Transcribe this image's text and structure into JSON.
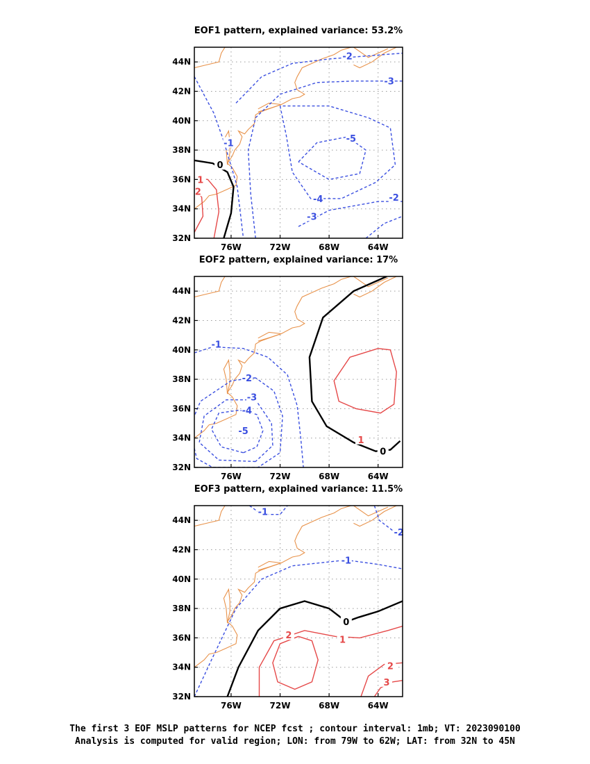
{
  "colors": {
    "coast": "#e8924a",
    "negative": "#3a4fe0",
    "positive": "#e54848",
    "zero": "#000000",
    "grid": "#9a9a9a"
  },
  "chart_data": [
    {
      "type": "contour",
      "title": "EOF1 pattern, explained variance: 53.2%",
      "xlim": [
        -79,
        -62
      ],
      "ylim": [
        32,
        45
      ],
      "xticks": [
        -76,
        -72,
        -68,
        -64
      ],
      "xtick_labels": [
        "76W",
        "72W",
        "68W",
        "64W"
      ],
      "yticks": [
        32,
        34,
        36,
        38,
        40,
        42,
        44
      ],
      "ytick_labels": [
        "32N",
        "34N",
        "36N",
        "38N",
        "40N",
        "42N",
        "44N"
      ],
      "grid": true,
      "contours": [
        {
          "level": -2,
          "label": "-2",
          "label_at": [
            -66.5,
            44.4
          ],
          "points": [
            [
              -75.6,
              41.2
            ],
            [
              -73.5,
              43
            ],
            [
              -71,
              43.9
            ],
            [
              -68,
              44.2
            ],
            [
              -65,
              44.4
            ],
            [
              -62,
              44.6
            ]
          ]
        },
        {
          "level": -3,
          "label": "-3",
          "label_at": [
            -63.1,
            42.7
          ],
          "points": [
            [
              -74.0,
              32.0
            ],
            [
              -74.4,
              35
            ],
            [
              -74.6,
              38
            ],
            [
              -74.0,
              40.2
            ],
            [
              -72,
              41.8
            ],
            [
              -69,
              42.6
            ],
            [
              -66,
              42.7
            ],
            [
              -62,
              42.7
            ]
          ]
        },
        {
          "level": -4,
          "label": "-4",
          "label_at": [
            -68.9,
            34.7
          ],
          "points": [
            [
              -72,
              41
            ],
            [
              -71.5,
              39
            ],
            [
              -71,
              36.5
            ],
            [
              -69.5,
              34.7
            ],
            [
              -67,
              34.7
            ],
            [
              -64.2,
              35.8
            ],
            [
              -62.6,
              37.0
            ],
            [
              -63.0,
              39.5
            ],
            [
              -64.8,
              40.2
            ],
            [
              -68,
              41.0
            ],
            [
              -72,
              41
            ]
          ]
        },
        {
          "level": -5,
          "label": "-5",
          "label_at": [
            -66.2,
            38.8
          ],
          "points": [
            [
              -70.5,
              37.2
            ],
            [
              -69,
              38.5
            ],
            [
              -66.5,
              38.9
            ],
            [
              -65.0,
              38.0
            ],
            [
              -65.5,
              36.4
            ],
            [
              -68,
              36.0
            ],
            [
              -70.5,
              37.2
            ]
          ]
        },
        {
          "level": -3,
          "label": "-3",
          "label_at": [
            -69.4,
            33.5
          ],
          "points": [
            [
              -70.5,
              32.8
            ],
            [
              -68,
              33.9
            ],
            [
              -64,
              34.5
            ],
            [
              -62,
              34.5
            ]
          ]
        },
        {
          "level": -2,
          "label": "-2",
          "label_at": [
            -62.7,
            34.8
          ],
          "points": [
            [
              -65.0,
              32.0
            ],
            [
              -63.5,
              33.0
            ],
            [
              -62,
              33.5
            ]
          ]
        },
        {
          "level": -1,
          "label": "-1",
          "label_at": [
            -76.2,
            38.5
          ],
          "points": [
            [
              -79,
              43
            ],
            [
              -77.4,
              40.5
            ],
            [
              -76.6,
              38.6
            ],
            [
              -75.5,
              35.5
            ],
            [
              -75.0,
              32
            ]
          ]
        },
        {
          "level": 0,
          "label": "0",
          "label_at": [
            -76.9,
            37.0
          ],
          "points": [
            [
              -79,
              37.3
            ],
            [
              -77.5,
              37.1
            ],
            [
              -76.3,
              36.5
            ],
            [
              -75.8,
              35.5
            ],
            [
              -76.0,
              33.7
            ],
            [
              -76.6,
              32
            ]
          ]
        },
        {
          "level": 1,
          "label": "1",
          "label_at": [
            -78.5,
            36.0
          ],
          "points": [
            [
              -79,
              36.1
            ],
            [
              -77.9,
              36.0
            ],
            [
              -77.2,
              35.3
            ],
            [
              -77.0,
              33.8
            ],
            [
              -77.4,
              32
            ]
          ]
        },
        {
          "level": 2,
          "label": "2",
          "label_at": [
            -78.7,
            35.2
          ],
          "points": [
            [
              -79,
              35.3
            ],
            [
              -78.4,
              34.8
            ],
            [
              -78.3,
              33.5
            ],
            [
              -79,
              32.4
            ]
          ]
        }
      ]
    },
    {
      "type": "contour",
      "title": "EOF2 pattern, explained variance: 17%",
      "xlim": [
        -79,
        -62
      ],
      "ylim": [
        32,
        45
      ],
      "xticks": [
        -76,
        -72,
        -68,
        -64
      ],
      "xtick_labels": [
        "76W",
        "72W",
        "68W",
        "64W"
      ],
      "yticks": [
        32,
        34,
        36,
        38,
        40,
        42,
        44
      ],
      "ytick_labels": [
        "32N",
        "34N",
        "36N",
        "38N",
        "40N",
        "42N",
        "44N"
      ],
      "grid": true,
      "contours": [
        {
          "level": 0,
          "label": "0",
          "label_at": [
            -63.6,
            33.1
          ],
          "points": [
            [
              -63.3,
              45
            ],
            [
              -66,
              44
            ],
            [
              -68.5,
              42.2
            ],
            [
              -69.6,
              39.5
            ],
            [
              -69.4,
              36.5
            ],
            [
              -68.2,
              34.8
            ],
            [
              -66,
              33.7
            ],
            [
              -64.2,
              33.1
            ],
            [
              -63.0,
              33.2
            ],
            [
              -62.2,
              33.8
            ]
          ]
        },
        {
          "level": 1,
          "label": "1",
          "label_at": [
            -65.4,
            33.9
          ],
          "points": [
            [
              -64,
              40.1
            ],
            [
              -66.3,
              39.5
            ],
            [
              -67.6,
              37.9
            ],
            [
              -67.2,
              36.5
            ],
            [
              -65.8,
              36.0
            ],
            [
              -63.8,
              35.7
            ],
            [
              -62.7,
              36.3
            ],
            [
              -62.5,
              38.5
            ],
            [
              -63,
              40
            ],
            [
              -64,
              40.1
            ]
          ]
        },
        {
          "level": -1,
          "label": "-1",
          "label_at": [
            -77.2,
            40.4
          ],
          "points": [
            [
              -79,
              39.8
            ],
            [
              -77.5,
              40.2
            ],
            [
              -75,
              40.1
            ],
            [
              -73,
              39.5
            ],
            [
              -71.4,
              38.3
            ],
            [
              -70.6,
              36.2
            ],
            [
              -70.3,
              33.9
            ],
            [
              -70.1,
              32
            ]
          ]
        },
        {
          "level": -2,
          "label": "-2",
          "label_at": [
            -74.7,
            38.1
          ],
          "points": [
            [
              -74,
              38.1
            ],
            [
              -76,
              37.9
            ],
            [
              -78.5,
              36.5
            ],
            [
              -79,
              35.5
            ]
          ]
        },
        {
          "level": -2,
          "label": "",
          "label_at": [
            -73,
            36
          ],
          "points": [
            [
              -79,
              33.3
            ],
            [
              -78.8,
              32.6
            ],
            [
              -77.5,
              32.0
            ],
            [
              -73.8,
              32.0
            ],
            [
              -72,
              33
            ],
            [
              -71.8,
              35.5
            ],
            [
              -72.5,
              37.2
            ],
            [
              -74,
              38.1
            ]
          ]
        },
        {
          "level": -3,
          "label": "-3",
          "label_at": [
            -74.3,
            36.8
          ],
          "points": [
            [
              -74.0,
              32.4
            ],
            [
              -77,
              32.5
            ],
            [
              -78.6,
              33.7
            ],
            [
              -78.2,
              35.5
            ],
            [
              -76.4,
              36.6
            ],
            [
              -74.0,
              36.6
            ],
            [
              -72.7,
              35.0
            ],
            [
              -72.6,
              33.5
            ],
            [
              -74.0,
              32.4
            ]
          ]
        },
        {
          "level": -4,
          "label": "-4",
          "label_at": [
            -74.7,
            35.9
          ],
          "points": [
            [
              -75,
              33.0
            ],
            [
              -76.8,
              33.4
            ],
            [
              -77.6,
              34.6
            ],
            [
              -77,
              35.7
            ],
            [
              -75.3,
              35.9
            ],
            [
              -73.9,
              35.6
            ],
            [
              -73.4,
              34.5
            ],
            [
              -73.9,
              33.4
            ],
            [
              -75,
              33.0
            ]
          ]
        },
        {
          "level": -5,
          "label": "-5",
          "label_at": [
            -75.0,
            34.5
          ],
          "points": []
        }
      ]
    },
    {
      "type": "contour",
      "title": "EOF3 pattern, explained variance: 11.5%",
      "xlim": [
        -79,
        -62
      ],
      "ylim": [
        32,
        45
      ],
      "xticks": [
        -76,
        -72,
        -68,
        -64
      ],
      "xtick_labels": [
        "76W",
        "72W",
        "68W",
        "64W"
      ],
      "yticks": [
        32,
        34,
        36,
        38,
        40,
        42,
        44
      ],
      "ytick_labels": [
        "32N",
        "34N",
        "36N",
        "38N",
        "40N",
        "42N",
        "44N"
      ],
      "grid": true,
      "contours": [
        {
          "level": -1,
          "label": "-1",
          "label_at": [
            -73.4,
            44.6
          ],
          "points": [
            [
              -74.5,
              45
            ],
            [
              -73.5,
              44.4
            ],
            [
              -72.0,
              44.4
            ],
            [
              -71.4,
              45
            ]
          ]
        },
        {
          "level": -2,
          "label": "-2",
          "label_at": [
            -62.3,
            43.2
          ],
          "points": [
            [
              -64.3,
              45
            ],
            [
              -63.9,
              44
            ],
            [
              -62.8,
              43.3
            ],
            [
              -62,
              43.0
            ]
          ]
        },
        {
          "level": -1,
          "label": "-1",
          "label_at": [
            -66.6,
            41.3
          ],
          "points": [
            [
              -79,
              32
            ],
            [
              -77.6,
              34.5
            ],
            [
              -75.6,
              38
            ],
            [
              -73.5,
              40.0
            ],
            [
              -71,
              40.9
            ],
            [
              -66.6,
              41.3
            ],
            [
              -64,
              41.0
            ],
            [
              -62,
              40.7
            ]
          ]
        },
        {
          "level": 0,
          "label": "0",
          "label_at": [
            -66.6,
            37.1
          ],
          "points": [
            [
              -76.3,
              32
            ],
            [
              -75.4,
              34.0
            ],
            [
              -73.8,
              36.5
            ],
            [
              -72,
              38.0
            ],
            [
              -70,
              38.5
            ],
            [
              -68,
              38.0
            ],
            [
              -66.6,
              37.1
            ],
            [
              -65.6,
              37.4
            ],
            [
              -64,
              37.8
            ],
            [
              -62,
              38.5
            ]
          ]
        },
        {
          "level": 1,
          "label": "1",
          "label_at": [
            -66.9,
            35.9
          ],
          "points": [
            [
              -73.7,
              32
            ],
            [
              -73.7,
              34.0
            ],
            [
              -72.5,
              35.8
            ],
            [
              -70,
              36.5
            ],
            [
              -67.5,
              36.1
            ],
            [
              -65.5,
              36.0
            ],
            [
              -63.2,
              36.5
            ],
            [
              -62,
              36.8
            ]
          ]
        },
        {
          "level": 2,
          "label": "2",
          "label_at": [
            -71.3,
            36.2
          ],
          "points": [
            [
              -70.5,
              36.1
            ],
            [
              -72,
              35.6
            ],
            [
              -72.6,
              34.3
            ],
            [
              -72.2,
              33.0
            ],
            [
              -70.8,
              32.5
            ],
            [
              -69.4,
              33.0
            ],
            [
              -68.9,
              34.5
            ],
            [
              -69.4,
              35.8
            ],
            [
              -70.5,
              36.1
            ]
          ]
        },
        {
          "level": 2,
          "label": "2",
          "label_at": [
            -63.0,
            34.1
          ],
          "points": [
            [
              -65.4,
              32
            ],
            [
              -64.8,
              33.4
            ],
            [
              -63.5,
              34.2
            ],
            [
              -62,
              34.3
            ]
          ]
        },
        {
          "level": 3,
          "label": "3",
          "label_at": [
            -63.3,
            33.0
          ],
          "points": [
            [
              -64.3,
              32
            ],
            [
              -63.8,
              32.6
            ],
            [
              -62.8,
              33.0
            ],
            [
              -62,
              33.1
            ]
          ]
        }
      ]
    }
  ],
  "caption": {
    "line1": "The first 3 EOF MSLP patterns for NCEP fcst ; contour interval: 1mb; VT: 2023090100",
    "line2": "Analysis is computed for valid region; LON: from 79W to 62W; LAT: from 32N to 45N"
  }
}
